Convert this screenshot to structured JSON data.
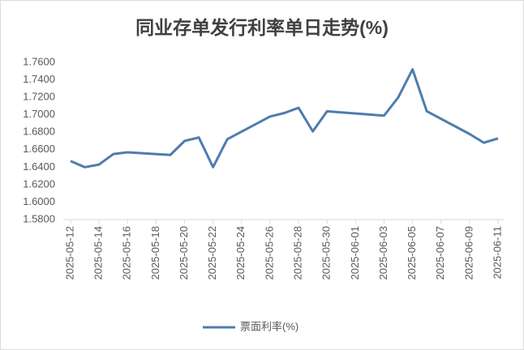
{
  "chart_data": {
    "type": "line",
    "title": "同业存单发行利率单日走势(%)",
    "x": [
      "2025-05-12",
      "2025-05-13",
      "2025-05-14",
      "2025-05-15",
      "2025-05-16",
      "2025-05-19",
      "2025-05-20",
      "2025-05-21",
      "2025-05-22",
      "2025-05-23",
      "2025-05-26",
      "2025-05-27",
      "2025-05-28",
      "2025-05-29",
      "2025-05-30",
      "2025-06-03",
      "2025-06-04",
      "2025-06-05",
      "2025-06-06",
      "2025-06-09",
      "2025-06-10",
      "2025-06-11"
    ],
    "series": [
      {
        "name": "票面利率(%)",
        "color": "#4f7cae",
        "values": [
          1.647,
          1.64,
          1.643,
          1.655,
          1.657,
          1.654,
          1.67,
          1.674,
          1.64,
          1.672,
          1.698,
          1.702,
          1.708,
          1.681,
          1.704,
          1.699,
          1.72,
          1.752,
          1.704,
          1.678,
          1.668,
          1.673
        ]
      }
    ],
    "xlim": [
      "2025-05-12",
      "2025-06-11"
    ],
    "xticks": [
      "2025-05-12",
      "2025-05-14",
      "2025-05-16",
      "2025-05-18",
      "2025-05-20",
      "2025-05-22",
      "2025-05-24",
      "2025-05-26",
      "2025-05-28",
      "2025-05-30",
      "2025-06-01",
      "2025-06-03",
      "2025-06-05",
      "2025-06-07",
      "2025-06-09",
      "2025-06-11"
    ],
    "ylim": [
      1.58,
      1.76
    ],
    "yticks": [
      {
        "value": 1.58,
        "label": "1.5800"
      },
      {
        "value": 1.6,
        "label": "1.6000"
      },
      {
        "value": 1.62,
        "label": "1.6200"
      },
      {
        "value": 1.64,
        "label": "1.6400"
      },
      {
        "value": 1.66,
        "label": "1.6600"
      },
      {
        "value": 1.68,
        "label": "1.6800"
      },
      {
        "value": 1.7,
        "label": "1.7000"
      },
      {
        "value": 1.72,
        "label": "1.7200"
      },
      {
        "value": 1.74,
        "label": "1.7400"
      },
      {
        "value": 1.76,
        "label": "1.7600"
      }
    ],
    "legend": "bottom"
  }
}
